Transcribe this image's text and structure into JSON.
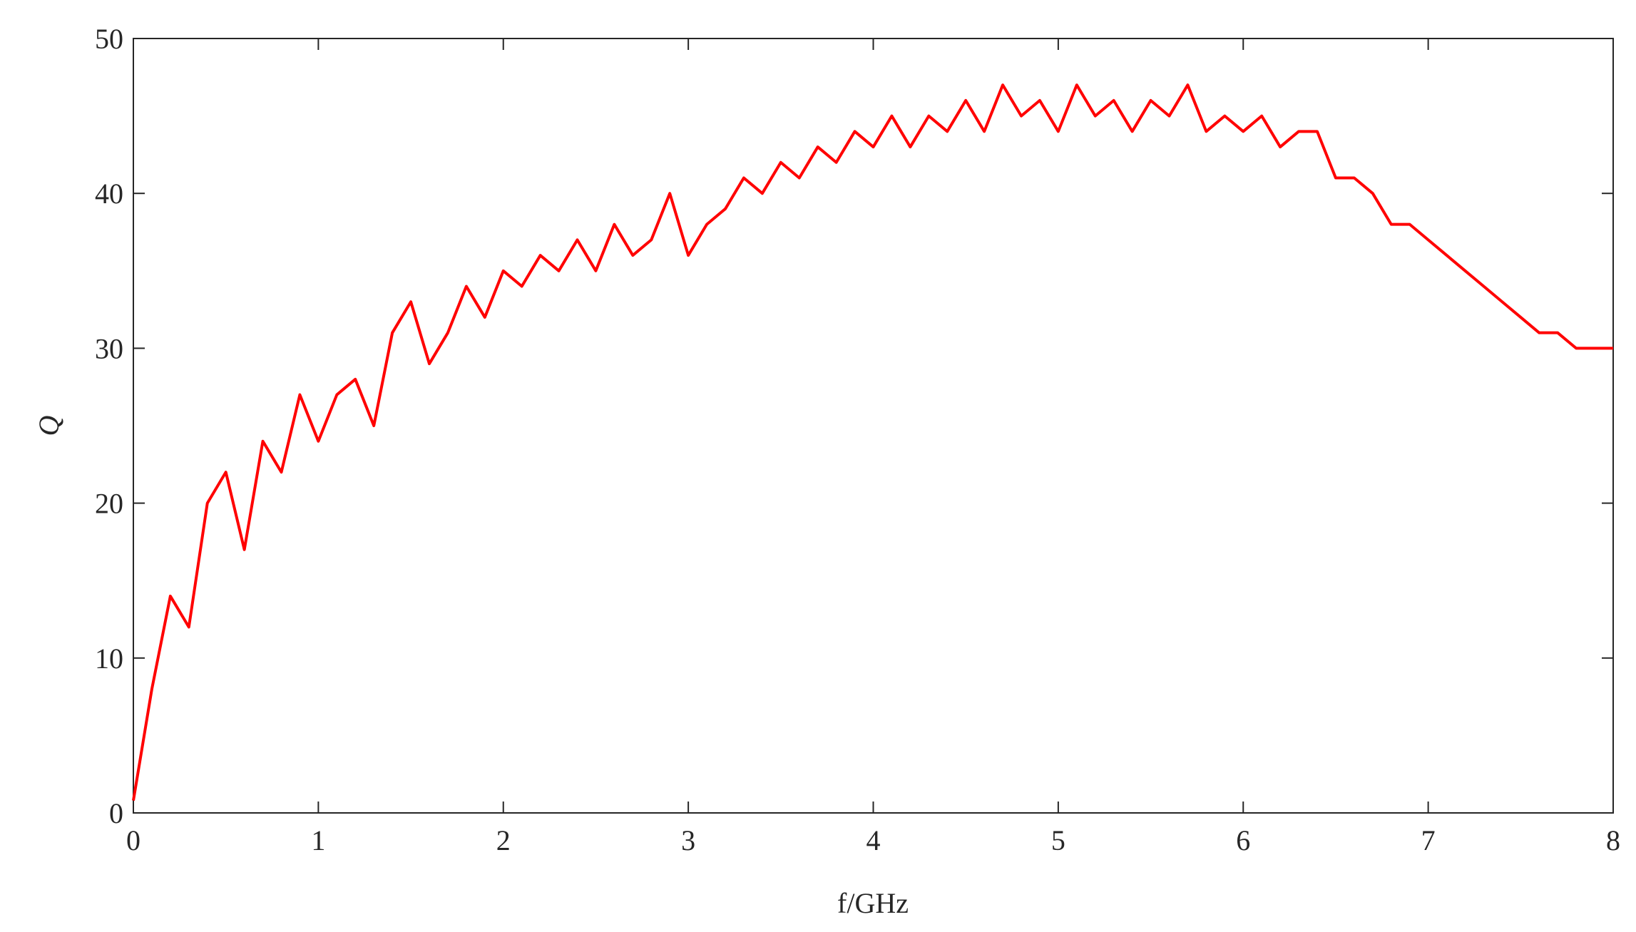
{
  "chart_data": {
    "type": "line",
    "x_label": "f/GHz",
    "y_label": "Q",
    "x": [
      0,
      0.1,
      0.2,
      0.3,
      0.4,
      0.5,
      0.6,
      0.7,
      0.8,
      0.9,
      1.0,
      1.1,
      1.2,
      1.3,
      1.4,
      1.5,
      1.6,
      1.7,
      1.8,
      1.9,
      2.0,
      2.1,
      2.2,
      2.3,
      2.4,
      2.5,
      2.6,
      2.7,
      2.8,
      2.9,
      3.0,
      3.1,
      3.2,
      3.3,
      3.4,
      3.5,
      3.6,
      3.7,
      3.8,
      3.9,
      4.0,
      4.1,
      4.2,
      4.3,
      4.4,
      4.5,
      4.6,
      4.7,
      4.8,
      4.9,
      5.0,
      5.1,
      5.2,
      5.3,
      5.4,
      5.5,
      5.6,
      5.7,
      5.8,
      5.9,
      6.0,
      6.1,
      6.2,
      6.3,
      6.4,
      6.5,
      6.6,
      6.7,
      6.8,
      6.9,
      7.0,
      7.1,
      7.2,
      7.3,
      7.4,
      7.5,
      7.6,
      7.7,
      7.8,
      7.9,
      8.0
    ],
    "series": [
      {
        "name": "Q",
        "color": "#ff0000",
        "values": [
          0.8,
          8,
          14,
          12,
          20,
          22,
          17,
          24,
          22,
          27,
          24,
          27,
          28,
          25,
          31,
          33,
          29,
          31,
          34,
          32,
          35,
          34,
          36,
          35,
          37,
          35,
          38,
          36,
          37,
          40,
          36,
          38,
          39,
          41,
          40,
          42,
          41,
          43,
          42,
          44,
          43,
          45,
          43,
          45,
          44,
          46,
          44,
          47,
          45,
          46,
          44,
          47,
          45,
          46,
          44,
          46,
          45,
          47,
          44,
          45,
          44,
          45,
          43,
          44,
          44,
          41,
          41,
          40,
          38,
          38,
          37,
          36,
          35,
          34,
          33,
          32,
          31,
          31,
          30,
          30,
          30
        ]
      }
    ],
    "xlim": [
      0,
      8
    ],
    "ylim": [
      0,
      50
    ],
    "xticks": [
      0,
      1,
      2,
      3,
      4,
      5,
      6,
      7,
      8
    ],
    "yticks": [
      0,
      10,
      20,
      30,
      40,
      50
    ]
  }
}
